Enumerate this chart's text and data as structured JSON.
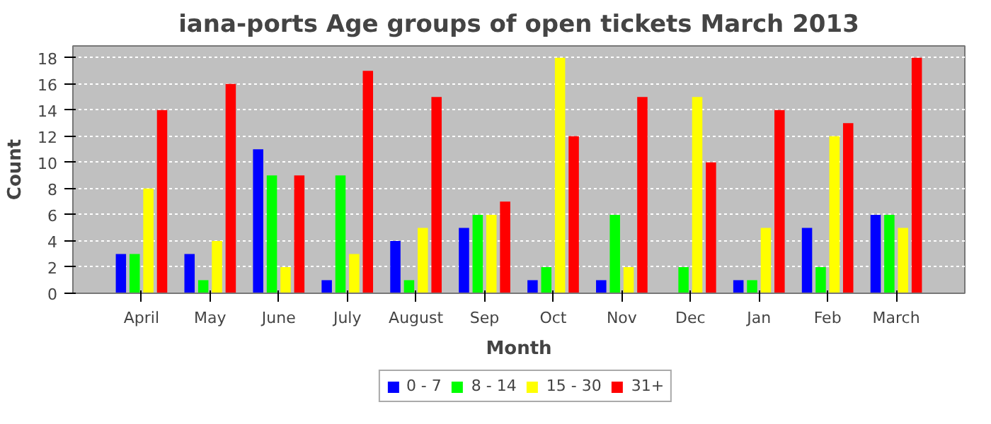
{
  "chart_data": {
    "type": "bar",
    "title": "iana-ports Age groups of open tickets March 2013",
    "xlabel": "Month",
    "ylabel": "Count",
    "categories": [
      "April",
      "May",
      "June",
      "July",
      "August",
      "Sep",
      "Oct",
      "Nov",
      "Dec",
      "Jan",
      "Feb",
      "March"
    ],
    "series": [
      {
        "name": "0 - 7",
        "color": "#0000ff",
        "values": [
          3,
          3,
          11,
          1,
          4,
          5,
          1,
          1,
          0,
          1,
          5,
          6
        ]
      },
      {
        "name": "8 - 14",
        "color": "#00ff00",
        "values": [
          3,
          1,
          9,
          9,
          1,
          6,
          2,
          6,
          2,
          1,
          2,
          6
        ]
      },
      {
        "name": "15 - 30",
        "color": "#ffff00",
        "values": [
          8,
          4,
          2,
          3,
          5,
          6,
          18,
          2,
          15,
          5,
          12,
          5
        ]
      },
      {
        "name": "31+",
        "color": "#ff0000",
        "values": [
          14,
          16,
          9,
          17,
          15,
          7,
          12,
          15,
          10,
          14,
          13,
          18
        ]
      }
    ],
    "ylim": [
      0,
      18.9
    ],
    "yticks": [
      0,
      2,
      4,
      6,
      8,
      10,
      12,
      14,
      16,
      18
    ],
    "grid": "y",
    "legend": "bottom"
  }
}
